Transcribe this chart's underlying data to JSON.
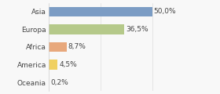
{
  "categories": [
    "Asia",
    "Europa",
    "Africa",
    "America",
    "Oceania"
  ],
  "values": [
    50.0,
    36.5,
    8.7,
    4.5,
    0.2
  ],
  "labels": [
    "50,0%",
    "36,5%",
    "8,7%",
    "4,5%",
    "0,2%"
  ],
  "bar_colors": [
    "#7b9cc4",
    "#b5c98a",
    "#e8a87c",
    "#f0d060",
    "#aaaaaa"
  ],
  "background_color": "#f8f8f8",
  "label_fontsize": 6.5,
  "tick_fontsize": 6.5,
  "xlim": [
    0,
    70
  ],
  "grid_lines": [
    25,
    50
  ],
  "bar_height": 0.55
}
